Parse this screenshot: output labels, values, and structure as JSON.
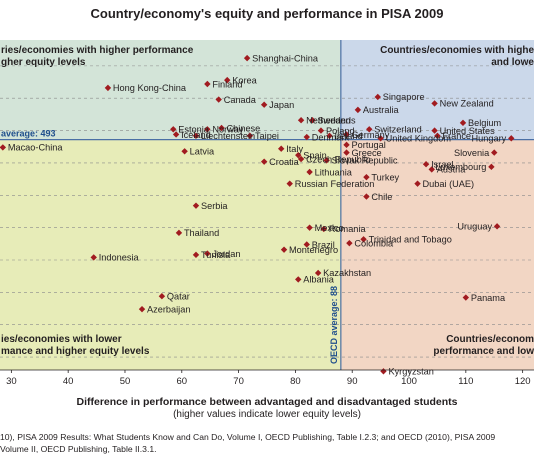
{
  "title": "Country/economy's equity and performance in PISA 2009",
  "xlabel": "Difference in performance between advantaged and disadvantaged students",
  "xsublabel": "(higher values indicate lower equity levels)",
  "source_line1": "10), PISA 2009 Results: What Students Know and Can Do, Volume I, OECD Publishing, Table I.2.3; and OECD (2010), PISA 2009",
  "source_line2": "Volume II, OECD Publishing, Table II.3.1.",
  "colors": {
    "top_left": "#d3e4d8",
    "top_right": "#cbd8ea",
    "bottom_left": "#e7ecb8",
    "bottom_right": "#f2d6c4",
    "marker": "#a11b20"
  },
  "chart_data": {
    "type": "scatter",
    "xlim": [
      28,
      122
    ],
    "ylim": [
      315,
      570
    ],
    "x_ticks": [
      "30",
      "40",
      "50",
      "60",
      "70",
      "80",
      "90",
      "100",
      "110",
      "120"
    ],
    "quadrant_labels": {
      "top_left": [
        "ries/economies with higher performance",
        "gher equity levels"
      ],
      "top_right": [
        "Countries/economies with highe",
        "and lowe"
      ],
      "bottom_left": [
        "ies/economies with lower",
        "mance and higher equity levels"
      ],
      "bottom_right": [
        "Countries/econom",
        "performance and low"
      ]
    },
    "average_labels": {
      "y": "average: 493",
      "x": "OECD average: 88"
    },
    "averages": {
      "x": 88,
      "y": 493
    },
    "points": [
      {
        "name": "Shanghai-China",
        "x": 71.5,
        "y": 556
      },
      {
        "name": "Finland",
        "x": 64.5,
        "y": 536
      },
      {
        "name": "Korea",
        "x": 68,
        "y": 539
      },
      {
        "name": "Hong Kong-China",
        "x": 47,
        "y": 533
      },
      {
        "name": "Singapore",
        "x": 94.5,
        "y": 526
      },
      {
        "name": "Canada",
        "x": 66.5,
        "y": 524
      },
      {
        "name": "Japan",
        "x": 74.5,
        "y": 520
      },
      {
        "name": "Sweden",
        "x": 83,
        "y": 508
      },
      {
        "name": "New Zealand",
        "x": 104.5,
        "y": 521
      },
      {
        "name": "Australia",
        "x": 91,
        "y": 516
      },
      {
        "name": "Netherlands",
        "x": 81,
        "y": 508
      },
      {
        "name": "Estonia",
        "x": 58.5,
        "y": 501
      },
      {
        "name": "Norway",
        "x": 64.5,
        "y": 501
      },
      {
        "name": "Chinese",
        "x": 67,
        "y": 502
      },
      {
        "name": "Taipei",
        "x": 72,
        "y": 496
      },
      {
        "name": "Poland",
        "x": 84.5,
        "y": 500
      },
      {
        "name": "Switzerland",
        "x": 93,
        "y": 501
      },
      {
        "name": "United States",
        "x": 104.5,
        "y": 500
      },
      {
        "name": "Belgium",
        "x": 109.5,
        "y": 506
      },
      {
        "name": "France",
        "x": 105,
        "y": 496
      },
      {
        "name": "Hungary",
        "x": 118,
        "y": 494
      },
      {
        "name": "Iceland",
        "x": 59,
        "y": 497
      },
      {
        "name": "Liechtenstein",
        "x": 62.5,
        "y": 496
      },
      {
        "name": "Italy",
        "x": 77.5,
        "y": 486
      },
      {
        "name": "Ireland",
        "x": 86,
        "y": 496
      },
      {
        "name": "Denmark",
        "x": 82,
        "y": 495
      },
      {
        "name": "Portugal",
        "x": 89,
        "y": 489
      },
      {
        "name": "United Kingdom",
        "x": 95,
        "y": 494
      },
      {
        "name": "Germany",
        "x": 89,
        "y": 497
      },
      {
        "name": "Macao-China",
        "x": 28.5,
        "y": 487
      },
      {
        "name": "Latvia",
        "x": 60.5,
        "y": 484
      },
      {
        "name": "Croatia",
        "x": 74.5,
        "y": 476
      },
      {
        "name": "Spain",
        "x": 80.5,
        "y": 481
      },
      {
        "name": "Greece",
        "x": 89,
        "y": 483
      },
      {
        "name": "Slovenia",
        "x": 115,
        "y": 483
      },
      {
        "name": "Israel",
        "x": 103,
        "y": 474
      },
      {
        "name": "Slovak Republic",
        "x": 85.5,
        "y": 477
      },
      {
        "name": "Czech Republic",
        "x": 81,
        "y": 478
      },
      {
        "name": "Austria",
        "x": 104,
        "y": 470
      },
      {
        "name": "Luxembourg",
        "x": 114.5,
        "y": 472
      },
      {
        "name": "Lithuania",
        "x": 82.5,
        "y": 468
      },
      {
        "name": "Turkey",
        "x": 92.5,
        "y": 464
      },
      {
        "name": "Dubai (UAE)",
        "x": 101.5,
        "y": 459
      },
      {
        "name": "Russian Federation",
        "x": 79,
        "y": 459
      },
      {
        "name": "Chile",
        "x": 92.5,
        "y": 449
      },
      {
        "name": "Serbia",
        "x": 62.5,
        "y": 442
      },
      {
        "name": "Uruguay",
        "x": 115.5,
        "y": 426
      },
      {
        "name": "Thailand",
        "x": 59.5,
        "y": 421
      },
      {
        "name": "Mexico",
        "x": 82.5,
        "y": 425
      },
      {
        "name": "Romania",
        "x": 85,
        "y": 424
      },
      {
        "name": "Indonesia",
        "x": 44.5,
        "y": 402
      },
      {
        "name": "Montenegro",
        "x": 78,
        "y": 408
      },
      {
        "name": "Trinidad and Tobago",
        "x": 92,
        "y": 416
      },
      {
        "name": "Tunisia",
        "x": 62.5,
        "y": 404
      },
      {
        "name": "Jordan",
        "x": 64.5,
        "y": 405
      },
      {
        "name": "Brazil",
        "x": 82,
        "y": 412
      },
      {
        "name": "Colombia",
        "x": 89.5,
        "y": 413
      },
      {
        "name": "Kazakhstan",
        "x": 84,
        "y": 390
      },
      {
        "name": "Albania",
        "x": 80.5,
        "y": 385
      },
      {
        "name": "Panama",
        "x": 110,
        "y": 371
      },
      {
        "name": "Qatar",
        "x": 56.5,
        "y": 372
      },
      {
        "name": "Azerbaijan",
        "x": 53,
        "y": 362
      },
      {
        "name": "Kyrgyzstan",
        "x": 95.5,
        "y": 314
      }
    ]
  }
}
